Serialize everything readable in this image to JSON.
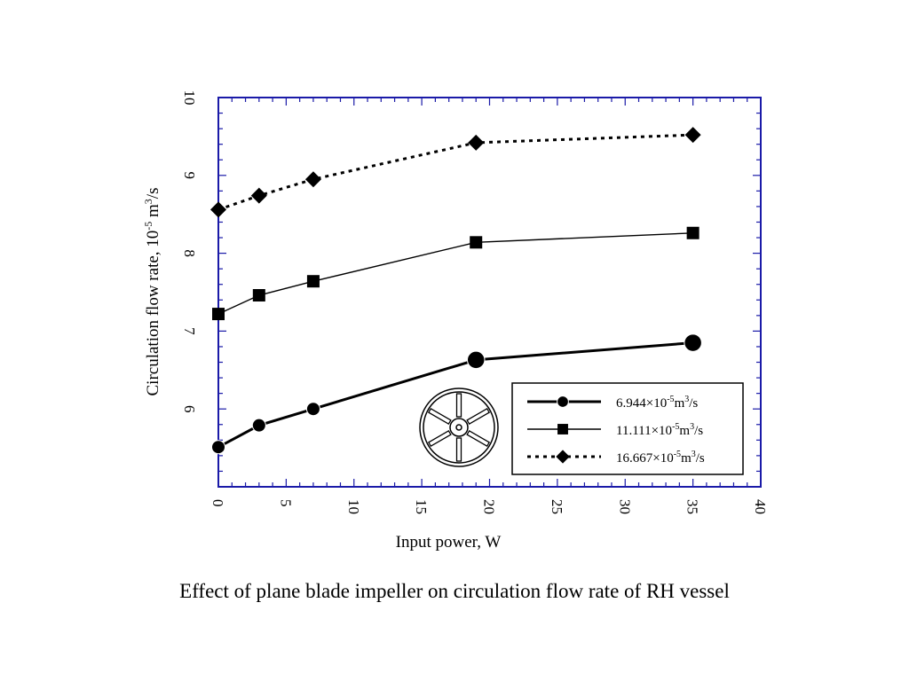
{
  "caption": "Effect of plane blade impeller on circulation flow rate of RH vessel",
  "colors": {
    "frame": "#1a1aa8",
    "series": "#000000",
    "background": "#ffffff"
  },
  "chart_data": {
    "type": "line",
    "title": "",
    "xlabel": "Input power, W",
    "ylabel": {
      "text": "Circulation flow rate, 10",
      "sup1": "-5",
      "mid": " m",
      "sup2": "3",
      "end": "/s"
    },
    "xlim": [
      0,
      40
    ],
    "ylim": [
      5,
      10
    ],
    "xticks": [
      0,
      5,
      10,
      15,
      20,
      25,
      30,
      35,
      40
    ],
    "yticks": [
      6,
      7,
      8,
      9,
      10
    ],
    "grid": false,
    "legend_position": "lower-right",
    "series": [
      {
        "name": {
          "mantissa": "6.944",
          "times": "×10",
          "exp": "-5",
          "unit": "m",
          "unit_exp": "3",
          "tail": "/s"
        },
        "marker": "circle",
        "line": "thick-solid",
        "x": [
          0,
          3,
          7,
          19,
          35
        ],
        "y": [
          5.51,
          5.79,
          6.0,
          6.63,
          6.85
        ]
      },
      {
        "name": {
          "mantissa": "11.111",
          "times": "×10",
          "exp": "-5",
          "unit": "m",
          "unit_exp": "3",
          "tail": "/s"
        },
        "marker": "square",
        "line": "thin-solid",
        "x": [
          0,
          3,
          7,
          19,
          35
        ],
        "y": [
          7.22,
          7.46,
          7.64,
          8.14,
          8.26
        ]
      },
      {
        "name": {
          "mantissa": "16.667",
          "times": "×10",
          "exp": "-5",
          "unit": "m",
          "unit_exp": "3",
          "tail": "/s"
        },
        "marker": "diamond",
        "line": "dotted",
        "x": [
          0,
          3,
          7,
          19,
          35
        ],
        "y": [
          8.56,
          8.74,
          8.95,
          9.42,
          9.52
        ]
      }
    ],
    "inset_icon": "plane-blade-impeller-icon"
  }
}
